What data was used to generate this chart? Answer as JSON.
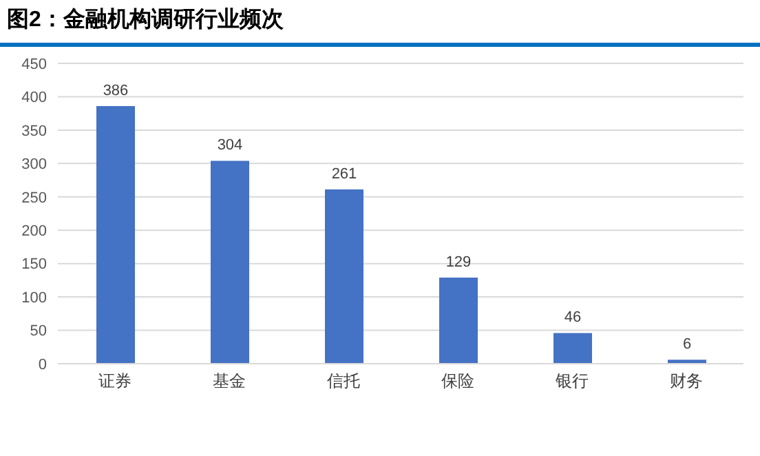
{
  "chart_data": {
    "type": "bar",
    "title": "图2：金融机构调研行业频次",
    "categories": [
      "证券",
      "基金",
      "信托",
      "保险",
      "银行",
      "财务"
    ],
    "values": [
      386,
      304,
      261,
      129,
      46,
      6
    ],
    "color": "#4472c4",
    "ylim": [
      0,
      450
    ],
    "yticks": [
      0,
      50,
      100,
      150,
      200,
      250,
      300,
      350,
      400,
      450
    ],
    "grid": "y",
    "data_labels": true
  }
}
